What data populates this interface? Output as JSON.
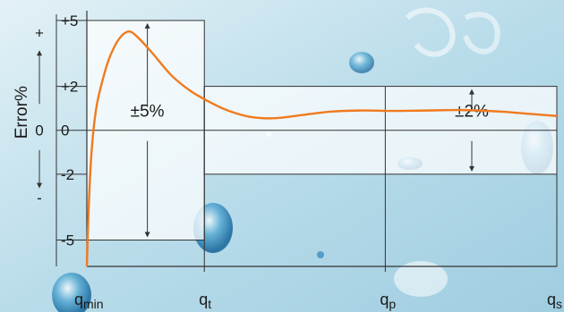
{
  "chart_data": {
    "type": "line",
    "title": "",
    "ylabel": "Error%",
    "xlabel": "",
    "ylim": [
      -6.2,
      5.2
    ],
    "ytick_labels": [
      {
        "value": 5,
        "label": "+5"
      },
      {
        "value": 2,
        "label": "+2"
      },
      {
        "value": 0,
        "label": "0"
      },
      {
        "value": -2,
        "label": "-2"
      },
      {
        "value": -5,
        "label": "-5"
      }
    ],
    "y_sign_labels": {
      "positive": "+",
      "zero": "0",
      "negative": "-"
    },
    "flow_points": [
      {
        "key": "qmin",
        "main": "q",
        "sub": "min",
        "pos": 0.0
      },
      {
        "key": "qt",
        "main": "q",
        "sub": "t",
        "pos": 0.25
      },
      {
        "key": "qp",
        "main": "q",
        "sub": "p",
        "pos": 0.635
      },
      {
        "key": "qs",
        "main": "q",
        "sub": "s",
        "pos": 1.0
      }
    ],
    "bands": [
      {
        "name": "low-flow",
        "from": "qmin",
        "to": "qt",
        "limit": 5,
        "label": "±5%"
      },
      {
        "name": "high-flow",
        "from": "qt",
        "to": "qs",
        "limit": 2,
        "label": "±2%"
      }
    ],
    "series": [
      {
        "color": "#f07a1e",
        "points": [
          [
            0.0,
            -6.2
          ],
          [
            0.004,
            -3.5
          ],
          [
            0.01,
            -1.0
          ],
          [
            0.02,
            1.0
          ],
          [
            0.035,
            2.4
          ],
          [
            0.05,
            3.4
          ],
          [
            0.07,
            4.2
          ],
          [
            0.09,
            4.5
          ],
          [
            0.11,
            4.2
          ],
          [
            0.14,
            3.5
          ],
          [
            0.18,
            2.5
          ],
          [
            0.22,
            1.8
          ],
          [
            0.26,
            1.3
          ],
          [
            0.3,
            0.9
          ],
          [
            0.35,
            0.6
          ],
          [
            0.4,
            0.55
          ],
          [
            0.46,
            0.7
          ],
          [
            0.52,
            0.85
          ],
          [
            0.58,
            0.9
          ],
          [
            0.65,
            0.88
          ],
          [
            0.72,
            0.9
          ],
          [
            0.8,
            0.92
          ],
          [
            0.88,
            0.85
          ],
          [
            0.94,
            0.75
          ],
          [
            1.0,
            0.65
          ]
        ]
      }
    ],
    "grid": false,
    "legend": "none"
  }
}
